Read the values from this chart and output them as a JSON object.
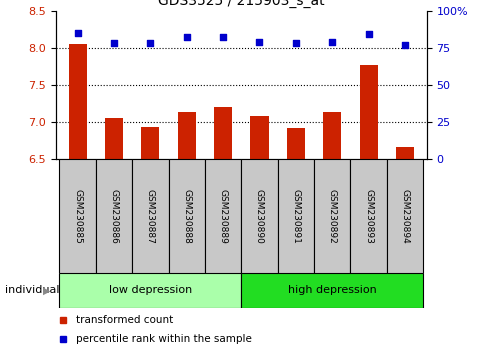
{
  "title": "GDS3525 / 215903_s_at",
  "samples": [
    "GSM230885",
    "GSM230886",
    "GSM230887",
    "GSM230888",
    "GSM230889",
    "GSM230890",
    "GSM230891",
    "GSM230892",
    "GSM230893",
    "GSM230894"
  ],
  "transformed_count": [
    8.05,
    7.05,
    6.93,
    7.13,
    7.2,
    7.08,
    6.92,
    7.13,
    7.77,
    6.67
  ],
  "percentile_rank": [
    85,
    78,
    78,
    82,
    82,
    79,
    78,
    79,
    84,
    77
  ],
  "ylim_left": [
    6.5,
    8.5
  ],
  "ylim_right": [
    0,
    100
  ],
  "yticks_left": [
    6.5,
    7.0,
    7.5,
    8.0,
    8.5
  ],
  "yticks_right": [
    0,
    25,
    50,
    75,
    100
  ],
  "ytick_labels_right": [
    "0",
    "25",
    "50",
    "75",
    "100%"
  ],
  "groups": [
    {
      "label": "low depression",
      "start": 0,
      "end": 5,
      "color": "#AAFFAA"
    },
    {
      "label": "high depression",
      "start": 5,
      "end": 10,
      "color": "#22DD22"
    }
  ],
  "bar_color": "#CC2200",
  "dot_color": "#0000CC",
  "bar_bottom": 6.5,
  "legend_items": [
    {
      "label": "transformed count",
      "color": "#CC2200"
    },
    {
      "label": "percentile rank within the sample",
      "color": "#0000CC"
    }
  ],
  "individual_label": "individual",
  "label_box_color": "#C8C8C8"
}
